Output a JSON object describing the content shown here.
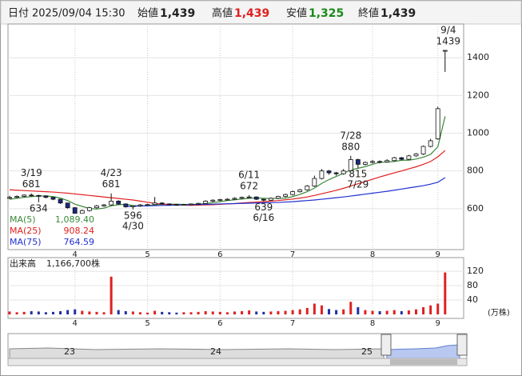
{
  "header": {
    "date_label": "日付",
    "date": "2025/09/04 15:30",
    "open_label": "始値",
    "open": "1,439",
    "high_label": "高値",
    "high": "1,439",
    "low_label": "安値",
    "low": "1,325",
    "close_label": "終値",
    "close": "1,439"
  },
  "chart_data": {
    "type": "candlestick",
    "ylim": [
      383,
      1579
    ],
    "yticks": [
      600,
      800,
      1000,
      1200,
      1400
    ],
    "grid": true,
    "xticks": [
      {
        "value": 9,
        "label": "4"
      },
      {
        "value": 19,
        "label": "5"
      },
      {
        "value": 29,
        "label": "6"
      },
      {
        "value": 39,
        "label": "7"
      },
      {
        "value": 50,
        "label": "8"
      },
      {
        "value": 59,
        "label": "9"
      }
    ],
    "up_color": "#ffffff",
    "down_color": "#1a2a80",
    "open": [
      655,
      660,
      665,
      672,
      670,
      668,
      660,
      650,
      630,
      605,
      575,
      590,
      605,
      615,
      620,
      640,
      625,
      610,
      615,
      620,
      622,
      630,
      625,
      622,
      620,
      622,
      625,
      628,
      640,
      645,
      648,
      650,
      655,
      660,
      662,
      650,
      645,
      655,
      665,
      675,
      690,
      700,
      720,
      760,
      800,
      790,
      785,
      800,
      860,
      835,
      845,
      850,
      848,
      855,
      870,
      862,
      880,
      890,
      930,
      970,
      1439
    ],
    "high": [
      668,
      670,
      676,
      681,
      674,
      670,
      662,
      652,
      632,
      608,
      595,
      610,
      620,
      625,
      681,
      645,
      628,
      618,
      625,
      626,
      662,
      634,
      628,
      625,
      626,
      628,
      632,
      645,
      650,
      652,
      655,
      660,
      664,
      672,
      665,
      652,
      660,
      668,
      680,
      695,
      705,
      725,
      775,
      810,
      805,
      795,
      810,
      880,
      865,
      850,
      858,
      856,
      862,
      875,
      874,
      885,
      895,
      935,
      970,
      1140,
      1439
    ],
    "low": [
      650,
      655,
      660,
      664,
      634,
      655,
      645,
      625,
      600,
      565,
      570,
      585,
      600,
      610,
      615,
      620,
      605,
      596,
      610,
      615,
      618,
      620,
      618,
      615,
      616,
      618,
      620,
      625,
      636,
      640,
      644,
      646,
      650,
      655,
      646,
      639,
      642,
      650,
      660,
      670,
      685,
      695,
      715,
      755,
      780,
      775,
      780,
      798,
      815,
      830,
      840,
      840,
      845,
      850,
      855,
      858,
      875,
      885,
      925,
      965,
      1325
    ],
    "close": [
      660,
      665,
      672,
      670,
      668,
      660,
      650,
      630,
      605,
      575,
      590,
      605,
      615,
      620,
      640,
      625,
      610,
      615,
      620,
      622,
      630,
      625,
      622,
      620,
      622,
      625,
      628,
      640,
      645,
      648,
      650,
      655,
      660,
      662,
      650,
      645,
      655,
      665,
      675,
      690,
      700,
      720,
      760,
      800,
      790,
      785,
      800,
      860,
      835,
      845,
      850,
      848,
      855,
      870,
      862,
      880,
      890,
      930,
      960,
      1130,
      1439
    ],
    "ma": [
      {
        "name": "MA(5)",
        "color": "#3a8a3a",
        "value_label": "1,089.40",
        "values": [
          650,
          655,
          660,
          664,
          667,
          667,
          664,
          656,
          643,
          624,
          612,
          601,
          598,
          603,
          615,
          621,
          623,
          617,
          614,
          616,
          621,
          623,
          624,
          624,
          622,
          623,
          624,
          627,
          632,
          637,
          643,
          647,
          651,
          655,
          657,
          655,
          654,
          655,
          656,
          664,
          676,
          690,
          709,
          734,
          754,
          771,
          787,
          805,
          814,
          823,
          835,
          846,
          847,
          850,
          857,
          857,
          863,
          873,
          888,
          928,
          1089.4
        ]
      },
      {
        "name": "MA(25)",
        "color": "#e02020",
        "value_label": "908.24",
        "values": [
          700,
          698,
          696,
          694,
          692,
          690,
          688,
          685,
          682,
          678,
          674,
          670,
          666,
          662,
          658,
          654,
          650,
          646,
          640,
          634,
          628,
          624,
          622,
          620,
          619,
          618,
          619,
          620,
          621,
          623,
          625,
          627,
          630,
          633,
          635,
          637,
          640,
          643,
          647,
          651,
          656,
          662,
          670,
          679,
          688,
          697,
          708,
          720,
          732,
          744,
          756,
          768,
          779,
          790,
          800,
          811,
          822,
          835,
          850,
          875,
          908.24
        ]
      },
      {
        "name": "MA(75)",
        "color": "#2030d0",
        "value_label": "764.59",
        "values": [
          null,
          null,
          null,
          null,
          null,
          null,
          null,
          null,
          null,
          null,
          null,
          null,
          null,
          null,
          null,
          null,
          612,
          613,
          614,
          615,
          616,
          617,
          618,
          619,
          620,
          621,
          622,
          623,
          624,
          625,
          626,
          627,
          628,
          629,
          630,
          631,
          632,
          633,
          635,
          637,
          640,
          643,
          646,
          650,
          654,
          658,
          662,
          667,
          672,
          677,
          682,
          687,
          692,
          698,
          704,
          710,
          716,
          722,
          730,
          740,
          764.59
        ]
      }
    ],
    "annotations": [
      {
        "index": 3,
        "date": "3/19",
        "price": 681,
        "position": "above"
      },
      {
        "index": 4,
        "price": 634,
        "position": "below"
      },
      {
        "index": 14,
        "date": "4/23",
        "price": 681,
        "position": "above"
      },
      {
        "index": 17,
        "date": "4/30",
        "price": 596,
        "position": "below"
      },
      {
        "index": 33,
        "date": "6/11",
        "price": 672,
        "position": "above"
      },
      {
        "index": 35,
        "date": "6/16",
        "price": 639,
        "position": "below"
      },
      {
        "index": 47,
        "date": "7/28",
        "price": 880,
        "position": "above"
      },
      {
        "index": 48,
        "date": "7/29",
        "price": 815,
        "position": "below"
      },
      {
        "index": 60,
        "date": "9/4",
        "price": 1439,
        "position": "above"
      }
    ],
    "volume_title": "出来高",
    "volume_total": "1,166,700株",
    "volume_unit": "(万株)",
    "vol_ylim": [
      0,
      158
    ],
    "vol_yticks": [
      40,
      80,
      120
    ],
    "vol_up_color": "#e02020",
    "vol_down_color": "#2030a0",
    "volume": [
      8,
      6,
      7,
      9,
      8,
      6,
      7,
      9,
      12,
      14,
      10,
      8,
      7,
      6,
      105,
      12,
      9,
      8,
      6,
      5,
      10,
      7,
      6,
      5,
      6,
      6,
      7,
      9,
      8,
      7,
      6,
      8,
      9,
      11,
      8,
      7,
      8,
      9,
      10,
      12,
      14,
      18,
      30,
      25,
      15,
      12,
      14,
      35,
      20,
      12,
      10,
      9,
      10,
      12,
      9,
      11,
      14,
      20,
      25,
      30,
      116.67
    ]
  },
  "navigator": {
    "labels": [
      "23",
      "24",
      "25"
    ]
  }
}
